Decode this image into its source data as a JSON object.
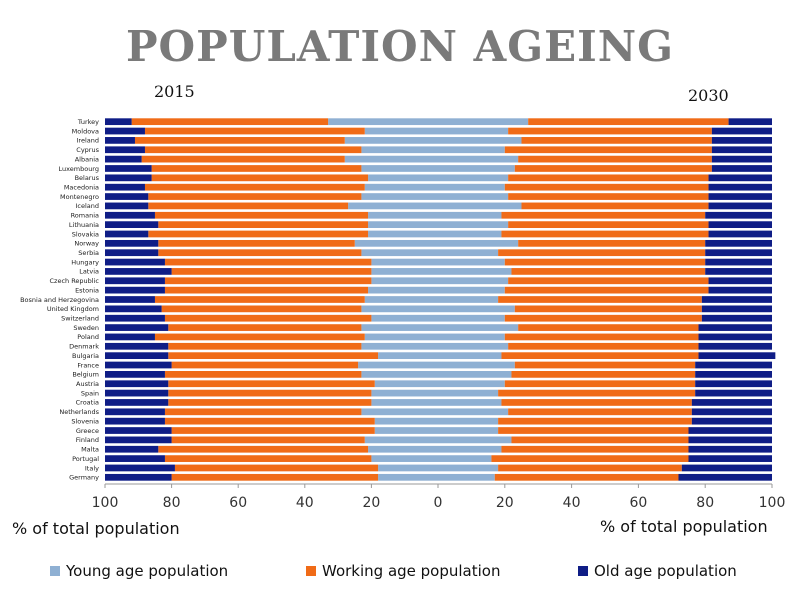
{
  "title": "POPULATION AGEING",
  "year_left": "2015",
  "year_right": "2030",
  "chart_data": {
    "type": "bar",
    "subtype": "horizontal-stacked-100-percent-butterfly",
    "title": "POPULATION AGEING",
    "xlabel_left": "% of total population",
    "xlabel_right": "% of total population",
    "xlim": [
      0,
      100
    ],
    "xticks_left": [
      "100",
      "80",
      "60",
      "40",
      "20",
      "0"
    ],
    "xticks_right": [
      "20",
      "40",
      "60",
      "80",
      "100"
    ],
    "legend": [
      "Young age population",
      "Working age population",
      "Old age population"
    ],
    "colors": {
      "young": "#8fb0d3",
      "working": "#f06b17",
      "old": "#0f1d86"
    },
    "categories": [
      "Turkey",
      "Moldova",
      "Ireland",
      "Cyprus",
      "Albania",
      "Luxembourg",
      "Belarus",
      "Macedonia",
      "Montenegro",
      "Iceland",
      "Romania",
      "Lithuania",
      "Slovakia",
      "Norway",
      "Serbia",
      "Hungary",
      "Latvia",
      "Czech Republic",
      "Estonia",
      "Bosnia and Herzegovina",
      "United Kingdom",
      "Switzerland",
      "Sweden",
      "Poland",
      "Denmark",
      "Bulgaria",
      "France",
      "Belgium",
      "Austria",
      "Spain",
      "Croatia",
      "Netherlands",
      "Slovenia",
      "Greece",
      "Finland",
      "Malta",
      "Portugal",
      "Italy",
      "Germany"
    ],
    "series_2015": [
      {
        "name": "Young age population",
        "values": [
          33,
          22,
          28,
          23,
          28,
          23,
          21,
          22,
          23,
          27,
          21,
          21,
          21,
          25,
          23,
          20,
          20,
          20,
          21,
          22,
          23,
          20,
          23,
          22,
          23,
          18,
          24,
          23,
          19,
          20,
          20,
          23,
          19,
          19,
          22,
          21,
          20,
          18,
          18
        ]
      },
      {
        "name": "Working age population",
        "values": [
          59,
          66,
          63,
          65,
          61,
          63,
          65,
          66,
          64,
          60,
          64,
          63,
          66,
          59,
          61,
          62,
          60,
          62,
          61,
          63,
          60,
          62,
          58,
          63,
          58,
          63,
          56,
          59,
          62,
          61,
          61,
          59,
          63,
          61,
          58,
          63,
          62,
          61,
          62
        ]
      },
      {
        "name": "Old age population",
        "values": [
          8,
          12,
          9,
          12,
          11,
          14,
          14,
          12,
          13,
          13,
          15,
          16,
          13,
          16,
          16,
          18,
          20,
          18,
          18,
          15,
          17,
          18,
          19,
          15,
          19,
          19,
          20,
          18,
          19,
          19,
          19,
          18,
          18,
          20,
          20,
          16,
          18,
          21,
          20
        ]
      }
    ],
    "series_2030": [
      {
        "name": "Young age population",
        "values": [
          27,
          21,
          25,
          20,
          24,
          23,
          21,
          20,
          21,
          25,
          19,
          21,
          19,
          24,
          18,
          20,
          22,
          21,
          20,
          18,
          23,
          20,
          24,
          20,
          21,
          19,
          23,
          22,
          20,
          18,
          19,
          21,
          18,
          18,
          22,
          19,
          16,
          18,
          17
        ]
      },
      {
        "name": "Working age population",
        "values": [
          60,
          61,
          57,
          62,
          58,
          59,
          60,
          61,
          60,
          56,
          61,
          60,
          62,
          56,
          62,
          60,
          58,
          60,
          61,
          61,
          56,
          59,
          54,
          58,
          57,
          59,
          54,
          55,
          57,
          59,
          57,
          55,
          58,
          57,
          53,
          56,
          59,
          55,
          55
        ]
      },
      {
        "name": "Old age population",
        "values": [
          13,
          18,
          18,
          18,
          18,
          18,
          19,
          19,
          19,
          19,
          20,
          19,
          19,
          20,
          20,
          20,
          20,
          19,
          19,
          21,
          21,
          21,
          22,
          22,
          22,
          23,
          23,
          23,
          23,
          23,
          24,
          24,
          24,
          25,
          25,
          25,
          25,
          27,
          28
        ]
      }
    ]
  }
}
